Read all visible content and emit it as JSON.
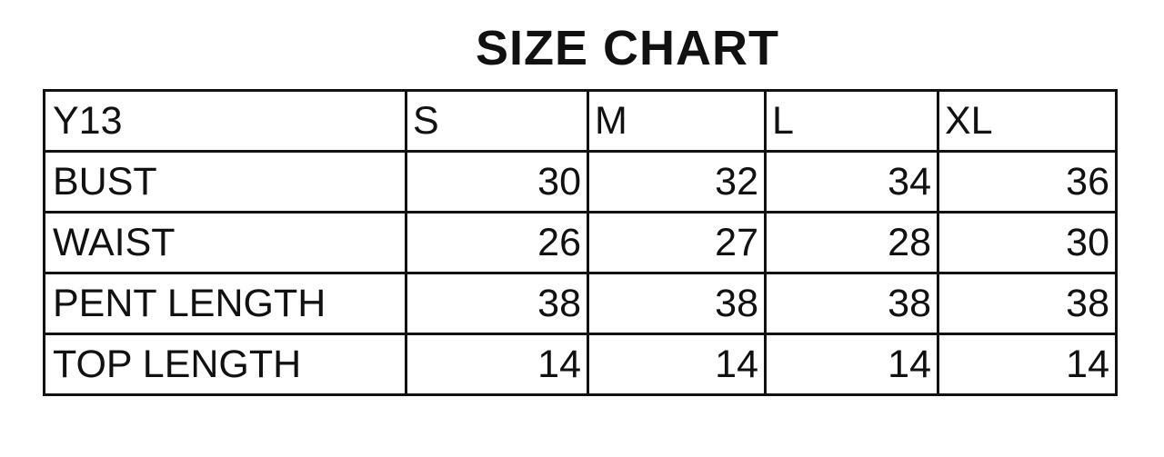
{
  "title": "SIZE CHART",
  "table": {
    "header": [
      "Y13",
      "S",
      "M",
      "L",
      "XL"
    ],
    "rows": [
      {
        "label": "BUST",
        "values": [
          "30",
          "32",
          "34",
          "36"
        ]
      },
      {
        "label": "WAIST",
        "values": [
          "26",
          "27",
          "28",
          "30"
        ]
      },
      {
        "label": "PENT LENGTH",
        "values": [
          "38",
          "38",
          "38",
          "38"
        ]
      },
      {
        "label": "TOP LENGTH",
        "values": [
          "14",
          "14",
          "14",
          "14"
        ]
      }
    ]
  }
}
